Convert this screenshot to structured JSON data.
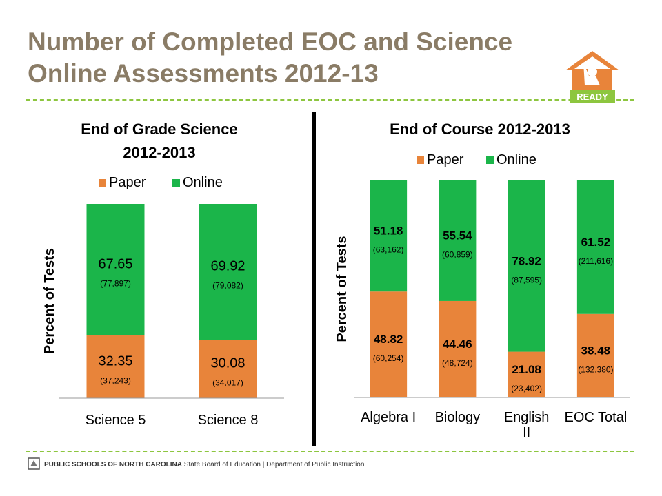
{
  "slide": {
    "title": "Number of Completed EOC and Science Online Assessments 2012-13",
    "logo_label": "READY",
    "footer_org": "PUBLIC SCHOOLS OF NORTH CAROLINA",
    "footer_rest": " State Board of Education | Department of Public Instruction"
  },
  "colors": {
    "paper": "#e8843a",
    "online": "#1bb54a",
    "title": "#8a7c66",
    "dash": "#8dc63f",
    "logo": "#e8843a",
    "logo_ribbon": "#8dc63f"
  },
  "chart_data": [
    {
      "type": "bar",
      "stacked": true,
      "title": [
        "End of Grade Science",
        "2012-2013"
      ],
      "ylabel": "Percent of Tests",
      "ylim": [
        0,
        100
      ],
      "legend_position": "top",
      "categories": [
        "Science 5",
        "Science 8"
      ],
      "series": [
        {
          "name": "Paper",
          "values": [
            32.35,
            30.08
          ],
          "counts": [
            "(37,243)",
            "(34,017)"
          ]
        },
        {
          "name": "Online",
          "values": [
            67.65,
            69.92
          ],
          "counts": [
            "(77,897)",
            "(79,082)"
          ]
        }
      ]
    },
    {
      "type": "bar",
      "stacked": true,
      "title": [
        "End of Course 2012-2013"
      ],
      "ylabel": "Percent of Tests",
      "ylim": [
        0,
        100
      ],
      "legend_position": "top",
      "categories": [
        "Algebra I",
        "Biology",
        "English II",
        "EOC Total"
      ],
      "series": [
        {
          "name": "Paper",
          "values": [
            48.82,
            44.46,
            21.08,
            38.48
          ],
          "counts": [
            "(60,254)",
            "(48,724)",
            "(23,402)",
            "(132,380)"
          ]
        },
        {
          "name": "Online",
          "values": [
            51.18,
            55.54,
            78.92,
            61.52
          ],
          "counts": [
            "(63,162)",
            "(60,859)",
            "(87,595)",
            "(211,616)"
          ]
        }
      ]
    }
  ]
}
